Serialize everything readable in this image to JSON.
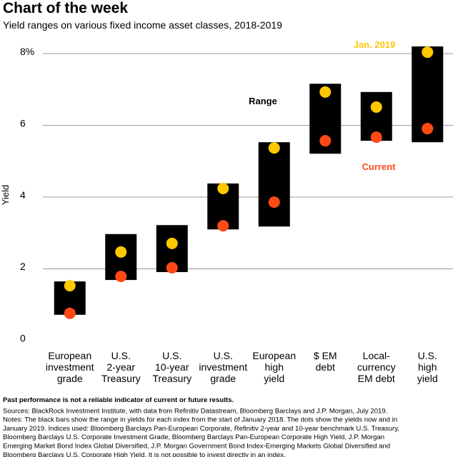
{
  "chart_data": {
    "type": "range",
    "title": "Chart of the week",
    "subtitle": "Yield ranges on various fixed income asset classes, 2018-2019",
    "y_label": "Yield",
    "categories": [
      [
        "European",
        "investment",
        "grade"
      ],
      [
        "U.S.",
        "2-year",
        "Treasury"
      ],
      [
        "U.S.",
        "10-year",
        "Treasury"
      ],
      [
        "U.S.",
        "investment",
        "grade"
      ],
      [
        "European",
        "high",
        "yield"
      ],
      [
        "$ EM",
        "debt"
      ],
      [
        "Local-",
        "currency",
        "EM debt"
      ],
      [
        "U.S.",
        "high",
        "yield"
      ]
    ],
    "series": [
      {
        "name": "Range",
        "color": "#000000",
        "low": [
          0.72,
          1.69,
          1.91,
          3.1,
          3.18,
          5.21,
          5.57,
          5.53
        ],
        "high": [
          1.65,
          2.97,
          3.22,
          4.38,
          5.53,
          7.16,
          6.93,
          8.2
        ]
      },
      {
        "name": "Jan. 2019",
        "color": "#ffc800",
        "values": [
          1.53,
          2.47,
          2.71,
          4.24,
          5.37,
          6.93,
          6.51,
          8.04
        ]
      },
      {
        "name": "Current",
        "color": "#ff4a16",
        "values": [
          0.76,
          1.79,
          2.03,
          3.2,
          3.86,
          5.57,
          5.67,
          5.91
        ]
      }
    ],
    "ylim": [
      0,
      8.4
    ],
    "yticks": [
      0,
      2,
      4,
      6,
      {
        "value": 8,
        "label": "8%"
      }
    ],
    "grid": true,
    "notes": [
      "Past performance is not a reliable indicator of current or future results.",
      "Sources: BlackRock Investment Institute, with data from Refinitiv Datastream, Bloomberg Barclays and J.P. Morgan, July 2019.",
      "Notes: The black bars show the range in yields for each index from the start of January 2018. The dots show the yields now and in",
      "January 2019. Indices used: Bloomberg Barclays Pan-European Corporate, Refinitiv 2-year and 10-year benchmark U.S. Treasury,",
      "Bloomberg Barclays U.S. Corporate Investment Grade, Bloomberg Barclays Pan-European Corporate High Yield, J.P. Morgan",
      "Emerging Market Bond Index Global Diversified, J.P. Morgan Government Bond Index-Emerging Markets Global Diversified and",
      "Bloomberg Barclays U.S. Corporate High Yield. It is not possible to invest directly in an index."
    ]
  }
}
